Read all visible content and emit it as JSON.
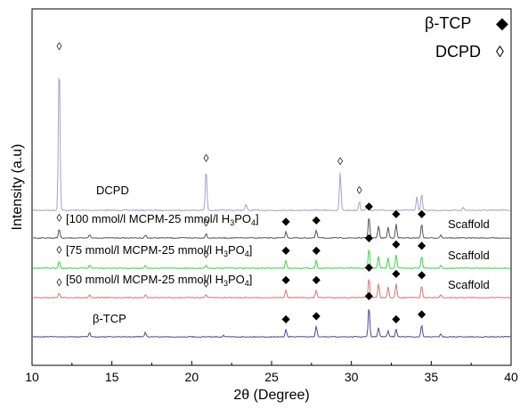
{
  "chart_data": {
    "type": "line",
    "xlabel": "2θ (Degree)",
    "ylabel": "Intensity (a.u)",
    "xlim": [
      10,
      40
    ],
    "x_ticks": [
      10,
      15,
      20,
      25,
      30,
      35,
      40
    ],
    "y_ticks_shown": false,
    "legend": {
      "placement": "top-right",
      "entries": [
        {
          "label": "β-TCP",
          "marker": "◆"
        },
        {
          "label": "DCPD",
          "marker": "◊"
        }
      ]
    },
    "series": [
      {
        "key": "dcpd",
        "label": "DCPD",
        "color": "#a89fd0",
        "peaks": [
          [
            11.7,
            1.0
          ],
          [
            20.9,
            0.27
          ],
          [
            23.4,
            0.04
          ],
          [
            29.3,
            0.25
          ],
          [
            30.5,
            0.06
          ],
          [
            31.0,
            0.03
          ],
          [
            34.1,
            0.09
          ],
          [
            34.4,
            0.11
          ],
          [
            37.0,
            0.02
          ]
        ]
      },
      {
        "key": "s100",
        "label_main": "[100 mmol/l MCPM-25 mmol/l H",
        "label_sub": "3",
        "label_end": "PO",
        "label_sub2": "4",
        "label_close": "]",
        "side_label": "Scaffold",
        "color": "#555555",
        "peaks": [
          [
            11.7,
            0.06
          ],
          [
            13.6,
            0.02
          ],
          [
            17.1,
            0.02
          ],
          [
            20.9,
            0.03
          ],
          [
            25.9,
            0.04
          ],
          [
            27.8,
            0.05
          ],
          [
            31.1,
            0.14
          ],
          [
            31.7,
            0.08
          ],
          [
            32.3,
            0.07
          ],
          [
            32.8,
            0.09
          ],
          [
            34.4,
            0.09
          ],
          [
            35.6,
            0.02
          ]
        ]
      },
      {
        "key": "s75",
        "label_main": "[75 mmol/l MCPM-25 mmol/l H",
        "label_sub": "3",
        "label_end": "PO",
        "label_sub2": "4",
        "label_close": "]",
        "side_label": "Scaffold",
        "color": "#33d944",
        "peaks": [
          [
            11.7,
            0.05
          ],
          [
            13.6,
            0.02
          ],
          [
            17.1,
            0.02
          ],
          [
            20.9,
            0.02
          ],
          [
            25.9,
            0.05
          ],
          [
            27.8,
            0.05
          ],
          [
            31.1,
            0.13
          ],
          [
            31.7,
            0.08
          ],
          [
            32.3,
            0.07
          ],
          [
            32.8,
            0.09
          ],
          [
            34.4,
            0.08
          ],
          [
            35.6,
            0.02
          ]
        ]
      },
      {
        "key": "s50",
        "label_main": "[50 mmol/l MCPM-25 mmol/l H",
        "label_sub": "3",
        "label_end": "PO",
        "label_sub2": "4",
        "label_close": "]",
        "side_label": "Scaffold",
        "color": "#e07070",
        "peaks": [
          [
            11.7,
            0.03
          ],
          [
            13.6,
            0.02
          ],
          [
            17.1,
            0.02
          ],
          [
            20.9,
            0.02
          ],
          [
            25.9,
            0.05
          ],
          [
            27.8,
            0.05
          ],
          [
            31.1,
            0.13
          ],
          [
            31.7,
            0.09
          ],
          [
            32.3,
            0.07
          ],
          [
            32.8,
            0.09
          ],
          [
            34.4,
            0.08
          ],
          [
            35.6,
            0.02
          ]
        ]
      },
      {
        "key": "tcp",
        "label": "β-TCP",
        "color": "#4a4a9a",
        "peaks": [
          [
            13.6,
            0.03
          ],
          [
            17.1,
            0.03
          ],
          [
            22.0,
            0.01
          ],
          [
            25.9,
            0.05
          ],
          [
            27.8,
            0.07
          ],
          [
            31.1,
            0.2
          ],
          [
            31.7,
            0.06
          ],
          [
            32.3,
            0.04
          ],
          [
            32.8,
            0.05
          ],
          [
            34.4,
            0.08
          ],
          [
            35.6,
            0.02
          ]
        ]
      }
    ],
    "annotations": [
      {
        "series": "dcpd",
        "x": 11.7,
        "symbol": "◊"
      },
      {
        "series": "dcpd",
        "x": 20.9,
        "symbol": "◊"
      },
      {
        "series": "dcpd",
        "x": 29.3,
        "symbol": "◊"
      },
      {
        "series": "dcpd",
        "x": 30.5,
        "symbol": "◊"
      },
      {
        "series": "s100",
        "x": 11.7,
        "symbol": "◊"
      },
      {
        "series": "s100",
        "x": 20.9,
        "symbol": "◊"
      },
      {
        "series": "s100",
        "x": 25.9,
        "symbol": "◆"
      },
      {
        "series": "s100",
        "x": 27.8,
        "symbol": "◆"
      },
      {
        "series": "s100",
        "x": 31.1,
        "symbol": "◆"
      },
      {
        "series": "s100",
        "x": 32.8,
        "symbol": "◆"
      },
      {
        "series": "s100",
        "x": 34.4,
        "symbol": "◆"
      },
      {
        "series": "s75",
        "x": 11.7,
        "symbol": "◊"
      },
      {
        "series": "s75",
        "x": 20.9,
        "symbol": "◊"
      },
      {
        "series": "s75",
        "x": 25.9,
        "symbol": "◆"
      },
      {
        "series": "s75",
        "x": 27.8,
        "symbol": "◆"
      },
      {
        "series": "s75",
        "x": 31.1,
        "symbol": "◆"
      },
      {
        "series": "s75",
        "x": 32.8,
        "symbol": "◆"
      },
      {
        "series": "s75",
        "x": 34.4,
        "symbol": "◆"
      },
      {
        "series": "s50",
        "x": 11.7,
        "symbol": "◊"
      },
      {
        "series": "s50",
        "x": 20.9,
        "symbol": "◊"
      },
      {
        "series": "s50",
        "x": 25.9,
        "symbol": "◆"
      },
      {
        "series": "s50",
        "x": 27.8,
        "symbol": "◆"
      },
      {
        "series": "s50",
        "x": 31.1,
        "symbol": "◆"
      },
      {
        "series": "s50",
        "x": 32.8,
        "symbol": "◆"
      },
      {
        "series": "s50",
        "x": 34.4,
        "symbol": "◆"
      },
      {
        "series": "tcp",
        "x": 25.9,
        "symbol": "◆"
      },
      {
        "series": "tcp",
        "x": 27.8,
        "symbol": "◆"
      },
      {
        "series": "tcp",
        "x": 31.1,
        "symbol": "◆"
      },
      {
        "series": "tcp",
        "x": 32.8,
        "symbol": "◆"
      },
      {
        "series": "tcp",
        "x": 34.4,
        "symbol": "◆"
      }
    ]
  }
}
